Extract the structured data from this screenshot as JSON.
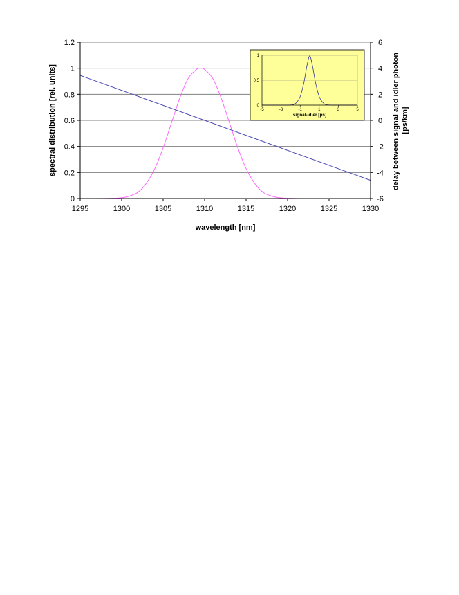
{
  "chart_data": [
    {
      "type": "line",
      "xlabel": "wavelength [nm]",
      "ylabel": "spectral distribution [rel. units]",
      "y2label": "delay between signal and idler photon [ps/km]",
      "xlim": [
        1295,
        1330
      ],
      "ylim": [
        0,
        1.2
      ],
      "y2lim": [
        -6,
        6
      ],
      "xticks": [
        "1295",
        "1300",
        "1305",
        "1310",
        "1315",
        "1320",
        "1325",
        "1330"
      ],
      "yticks": [
        "0",
        "0.2",
        "0.4",
        "0.6",
        "0.8",
        "1",
        "1.2"
      ],
      "y2ticks": [
        "-6",
        "-4",
        "-2",
        "0",
        "2",
        "4",
        "6"
      ],
      "grid": true,
      "series": [
        {
          "axis": "left",
          "color": "#ff66ff",
          "x": [
            1295,
            1297,
            1299,
            1300,
            1301,
            1302,
            1303,
            1304,
            1305,
            1306,
            1307,
            1308,
            1309,
            1309.5,
            1310,
            1311,
            1312,
            1313,
            1314,
            1315,
            1316,
            1317,
            1318,
            1319,
            1320,
            1322,
            1325,
            1330
          ],
          "y": [
            0,
            0,
            0.002,
            0.006,
            0.02,
            0.05,
            0.12,
            0.23,
            0.39,
            0.58,
            0.77,
            0.92,
            0.99,
            1.0,
            0.99,
            0.92,
            0.77,
            0.58,
            0.39,
            0.23,
            0.12,
            0.05,
            0.02,
            0.006,
            0.002,
            0,
            0,
            0
          ]
        },
        {
          "axis": "right",
          "color": "#4b4bb3",
          "x": [
            1295,
            1330
          ],
          "y": [
            3.45,
            -4.6
          ]
        }
      ]
    },
    {
      "type": "line",
      "xlabel": "signal-idler [ps]",
      "xlim": [
        -5,
        5
      ],
      "ylim": [
        0,
        1
      ],
      "xticks": [
        "-5",
        "-3",
        "-1",
        "1",
        "3",
        "5"
      ],
      "yticks": [
        "0",
        "0.5",
        "1"
      ],
      "grid": true,
      "background": "#ffff99",
      "series": [
        {
          "color": "#333399",
          "x": [
            -5,
            -3,
            -2,
            -1.5,
            -1.0,
            -0.6,
            -0.3,
            0,
            0.3,
            0.6,
            1.0,
            1.5,
            2,
            3,
            5
          ],
          "y": [
            0,
            0,
            0.003,
            0.03,
            0.17,
            0.46,
            0.78,
            0.99,
            0.78,
            0.46,
            0.17,
            0.03,
            0.003,
            0,
            0
          ]
        }
      ]
    }
  ]
}
